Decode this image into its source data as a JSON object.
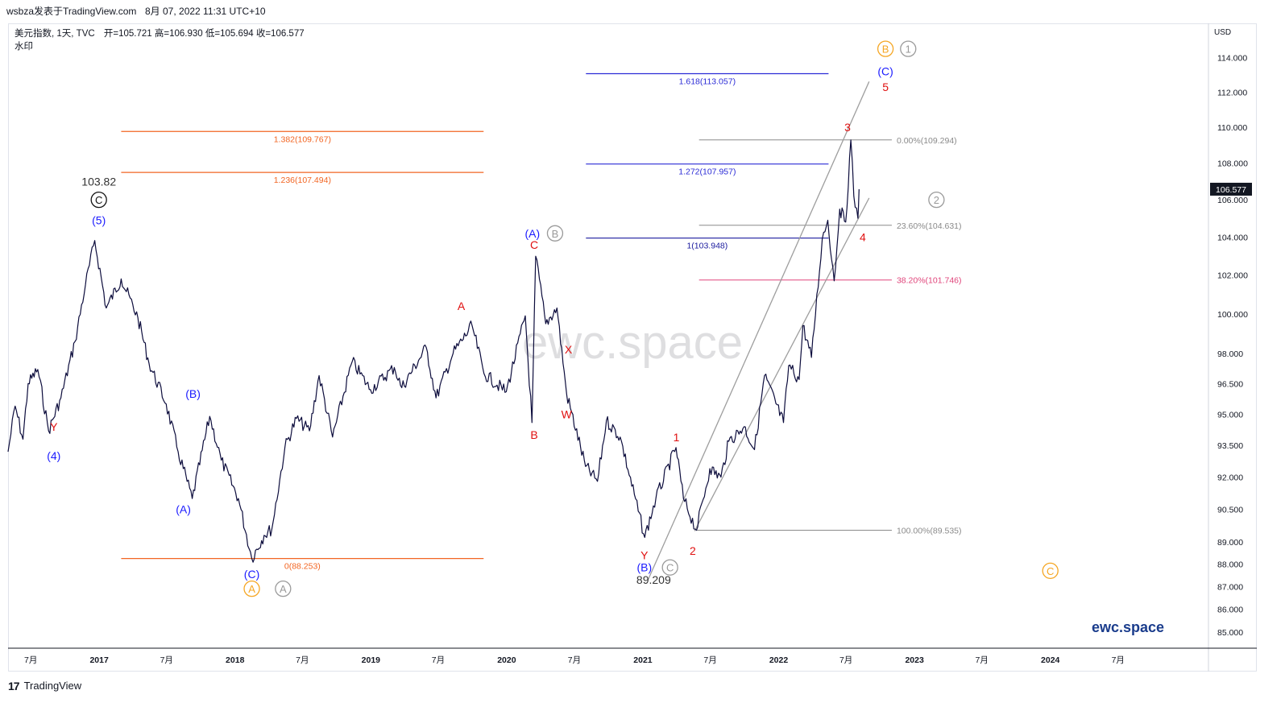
{
  "header": {
    "publisher": "wsbza发表于TradingView.com",
    "timestamp": "8月 07, 2022 11:31 UTC+10"
  },
  "legend": {
    "symbol": "美元指数, 1天, TVC",
    "ohlc": "开=105.721  高=106.930  低=105.694  收=106.577",
    "watermark_label": "水印"
  },
  "footer": {
    "logo_text": "TradingView"
  },
  "chart_data": {
    "type": "line",
    "currency": "USD",
    "last_price": "106.577",
    "ylim": [
      84.3,
      116.0
    ],
    "y_scale": "log",
    "xlim": [
      "2016-05-01",
      "2025-03-01"
    ],
    "grid": false,
    "watermark_text": "ewc.space",
    "brand_text": "ewc.space",
    "price_color": "#0c0c3c",
    "y_ticks": [
      {
        "v": 114,
        "label": "114.000"
      },
      {
        "v": 112,
        "label": "112.000"
      },
      {
        "v": 110,
        "label": "110.000"
      },
      {
        "v": 108,
        "label": "108.000"
      },
      {
        "v": 106,
        "label": "106.000"
      },
      {
        "v": 104,
        "label": "104.000"
      },
      {
        "v": 102,
        "label": "102.000"
      },
      {
        "v": 100,
        "label": "100.000"
      },
      {
        "v": 98,
        "label": "98.000"
      },
      {
        "v": 96.5,
        "label": "96.500"
      },
      {
        "v": 95,
        "label": "95.000"
      },
      {
        "v": 93.5,
        "label": "93.500"
      },
      {
        "v": 92,
        "label": "92.000"
      },
      {
        "v": 90.5,
        "label": "90.500"
      },
      {
        "v": 89,
        "label": "89.000"
      },
      {
        "v": 88,
        "label": "88.000"
      },
      {
        "v": 87,
        "label": "87.000"
      },
      {
        "v": 86,
        "label": "86.000"
      },
      {
        "v": 85,
        "label": "85.000"
      }
    ],
    "x_ticks": [
      {
        "d": "2016-07-01",
        "label": "7月",
        "bold": false
      },
      {
        "d": "2017-01-01",
        "label": "2017",
        "bold": true
      },
      {
        "d": "2017-07-01",
        "label": "7月",
        "bold": false
      },
      {
        "d": "2018-01-01",
        "label": "2018",
        "bold": true
      },
      {
        "d": "2018-07-01",
        "label": "7月",
        "bold": false
      },
      {
        "d": "2019-01-01",
        "label": "2019",
        "bold": true
      },
      {
        "d": "2019-07-01",
        "label": "7月",
        "bold": false
      },
      {
        "d": "2020-01-01",
        "label": "2020",
        "bold": true
      },
      {
        "d": "2020-07-01",
        "label": "7月",
        "bold": false
      },
      {
        "d": "2021-01-01",
        "label": "2021",
        "bold": true
      },
      {
        "d": "2021-07-01",
        "label": "7月",
        "bold": false
      },
      {
        "d": "2022-01-01",
        "label": "2022",
        "bold": true
      },
      {
        "d": "2022-07-01",
        "label": "7月",
        "bold": false
      },
      {
        "d": "2023-01-01",
        "label": "2023",
        "bold": true
      },
      {
        "d": "2023-07-01",
        "label": "7月",
        "bold": false
      },
      {
        "d": "2024-01-01",
        "label": "2024",
        "bold": true
      },
      {
        "d": "2024-07-01",
        "label": "7月",
        "bold": false
      }
    ],
    "price_path": [
      [
        "2016-05-01",
        93.2
      ],
      [
        "2016-05-20",
        95.4
      ],
      [
        "2016-06-10",
        93.8
      ],
      [
        "2016-06-24",
        96.5
      ],
      [
        "2016-07-20",
        97.2
      ],
      [
        "2016-08-18",
        94.2
      ],
      [
        "2016-09-20",
        95.8
      ],
      [
        "2016-10-28",
        98.6
      ],
      [
        "2016-11-25",
        101.5
      ],
      [
        "2016-12-20",
        103.82
      ],
      [
        "2017-01-20",
        100.3
      ],
      [
        "2017-03-01",
        101.8
      ],
      [
        "2017-04-15",
        99.8
      ],
      [
        "2017-05-15",
        97.5
      ],
      [
        "2017-06-30",
        95.5
      ],
      [
        "2017-08-01",
        93.2
      ],
      [
        "2017-09-08",
        91.0
      ],
      [
        "2017-10-25",
        94.9
      ],
      [
        "2017-11-25",
        92.8
      ],
      [
        "2018-01-10",
        91.0
      ],
      [
        "2018-02-15",
        88.253
      ],
      [
        "2018-03-20",
        89.3
      ],
      [
        "2018-04-10",
        89.6
      ],
      [
        "2018-05-15",
        93.4
      ],
      [
        "2018-06-15",
        94.8
      ],
      [
        "2018-07-20",
        94.2
      ],
      [
        "2018-08-15",
        96.9
      ],
      [
        "2018-09-20",
        93.9
      ],
      [
        "2018-11-12",
        97.6
      ],
      [
        "2018-12-31",
        96.2
      ],
      [
        "2019-03-05",
        97.3
      ],
      [
        "2019-03-25",
        96.3
      ],
      [
        "2019-05-30",
        98.3
      ],
      [
        "2019-06-25",
        95.8
      ],
      [
        "2019-08-10",
        98.0
      ],
      [
        "2019-09-30",
        99.4
      ],
      [
        "2019-11-01",
        97.0
      ],
      [
        "2019-12-31",
        96.1
      ],
      [
        "2020-02-20",
        99.9
      ],
      [
        "2020-03-09",
        94.6
      ],
      [
        "2020-03-19",
        102.99
      ],
      [
        "2020-04-15",
        99.5
      ],
      [
        "2020-05-15",
        100.3
      ],
      [
        "2020-06-10",
        96.0
      ],
      [
        "2020-07-31",
        92.5
      ],
      [
        "2020-09-01",
        91.8
      ],
      [
        "2020-09-25",
        94.7
      ],
      [
        "2020-11-01",
        93.9
      ],
      [
        "2021-01-06",
        89.209
      ],
      [
        "2021-02-05",
        91.0
      ],
      [
        "2021-03-31",
        93.4
      ],
      [
        "2021-04-20",
        91.0
      ],
      [
        "2021-05-25",
        89.535
      ],
      [
        "2021-06-30",
        92.4
      ],
      [
        "2021-07-30",
        92.0
      ],
      [
        "2021-08-20",
        93.7
      ],
      [
        "2021-09-30",
        94.4
      ],
      [
        "2021-10-28",
        93.3
      ],
      [
        "2021-11-24",
        96.9
      ],
      [
        "2022-01-14",
        94.6
      ],
      [
        "2022-01-28",
        97.4
      ],
      [
        "2022-02-25",
        96.7
      ],
      [
        "2022-03-07",
        99.4
      ],
      [
        "2022-03-30",
        97.8
      ],
      [
        "2022-04-28",
        103.9
      ],
      [
        "2022-05-13",
        104.9
      ],
      [
        "2022-05-30",
        101.7
      ],
      [
        "2022-06-14",
        105.5
      ],
      [
        "2022-06-30",
        104.8
      ],
      [
        "2022-07-14",
        109.294
      ],
      [
        "2022-07-22",
        106.2
      ],
      [
        "2022-08-02",
        105.0
      ],
      [
        "2022-08-05",
        106.577
      ]
    ],
    "fib_levels": [
      {
        "d1": "2017-03-01",
        "d2": "2019-10-31",
        "v": 109.767,
        "label": "1.382(109.767)",
        "color": "#f26522"
      },
      {
        "d1": "2017-03-01",
        "d2": "2019-10-31",
        "v": 107.494,
        "label": "1.236(107.494)",
        "color": "#f26522"
      },
      {
        "d1": "2017-03-01",
        "d2": "2019-10-31",
        "v": 88.253,
        "label": "0(88.253)",
        "color": "#f26522"
      },
      {
        "d1": "2020-08-01",
        "d2": "2022-05-15",
        "v": 113.057,
        "label": "1.618(113.057)",
        "color": "#2b2bd6"
      },
      {
        "d1": "2020-08-01",
        "d2": "2022-05-15",
        "v": 107.957,
        "label": "1.272(107.957)",
        "color": "#2b2bd6"
      },
      {
        "d1": "2020-08-01",
        "d2": "2022-05-15",
        "v": 103.948,
        "label": "1(103.948)",
        "color": "#1a1a9e"
      }
    ],
    "retracements": [
      {
        "d1": "2021-06-01",
        "d2": "2022-11-01",
        "v": 109.294,
        "label": "0.00%(109.294)",
        "color": "#8a8a8a"
      },
      {
        "d1": "2021-06-01",
        "d2": "2022-11-01",
        "v": 104.631,
        "label": "23.60%(104.631)",
        "color": "#8a8a8a"
      },
      {
        "d1": "2021-06-01",
        "d2": "2022-11-01",
        "v": 101.746,
        "label": "38.20%(101.746)",
        "color": "#e0457b"
      },
      {
        "d1": "2021-05-25",
        "d2": "2022-11-01",
        "v": 89.535,
        "label": "100.00%(89.535)",
        "color": "#8a8a8a"
      }
    ],
    "channel_lines": [
      {
        "p1": [
          "2021-01-15",
          87.3
        ],
        "p2": [
          "2022-09-01",
          112.6
        ]
      },
      {
        "p1": [
          "2021-05-20",
          89.5
        ],
        "p2": [
          "2022-09-01",
          106.1
        ]
      }
    ],
    "wave_labels": [
      {
        "d": "2016-09-01",
        "v": 94.4,
        "text": "Y",
        "color": "#e01010",
        "circle": null
      },
      {
        "d": "2016-09-01",
        "v": 93.0,
        "text": "(4)",
        "color": "#1a1aff",
        "circle": null
      },
      {
        "d": "2016-12-31",
        "v": 104.9,
        "text": "(5)",
        "color": "#1a1aff",
        "circle": null
      },
      {
        "d": "2016-12-31",
        "v": 107.0,
        "text": "103.82",
        "color": "#333333",
        "circle": null
      },
      {
        "d": "2016-12-31",
        "v": 106.0,
        "text": "C",
        "color": "#111111",
        "circle": "#111111"
      },
      {
        "d": "2017-09-10",
        "v": 96.0,
        "text": "(B)",
        "color": "#1a1aff",
        "circle": null
      },
      {
        "d": "2017-08-15",
        "v": 90.5,
        "text": "(A)",
        "color": "#1a1aff",
        "circle": null
      },
      {
        "d": "2018-02-15",
        "v": 87.55,
        "text": "(C)",
        "color": "#1a1aff",
        "circle": null
      },
      {
        "d": "2018-02-15",
        "v": 86.9,
        "text": "A",
        "color": "#f5a623",
        "circle": "#f5a623"
      },
      {
        "d": "2018-05-10",
        "v": 86.9,
        "text": "A",
        "color": "#9a9a9a",
        "circle": "#9a9a9a"
      },
      {
        "d": "2019-09-01",
        "v": 100.4,
        "text": "A",
        "color": "#e01010",
        "circle": null
      },
      {
        "d": "2020-03-15",
        "v": 94.0,
        "text": "B",
        "color": "#e01010",
        "circle": null
      },
      {
        "d": "2020-03-15",
        "v": 103.6,
        "text": "C",
        "color": "#e01010",
        "circle": null
      },
      {
        "d": "2020-03-10",
        "v": 104.2,
        "text": "(A)",
        "color": "#1a1aff",
        "circle": null
      },
      {
        "d": "2020-05-10",
        "v": 104.2,
        "text": "B",
        "color": "#9a9a9a",
        "circle": "#9a9a9a"
      },
      {
        "d": "2020-06-15",
        "v": 98.2,
        "text": "X",
        "color": "#e01010",
        "circle": null
      },
      {
        "d": "2020-06-10",
        "v": 95.0,
        "text": "W",
        "color": "#e01010",
        "circle": null
      },
      {
        "d": "2021-01-05",
        "v": 88.4,
        "text": "Y",
        "color": "#e01010",
        "circle": null
      },
      {
        "d": "2021-01-05",
        "v": 87.85,
        "text": "(B)",
        "color": "#1a1aff",
        "circle": null
      },
      {
        "d": "2021-03-15",
        "v": 87.85,
        "text": "C",
        "color": "#9a9a9a",
        "circle": "#9a9a9a"
      },
      {
        "d": "2021-01-30",
        "v": 87.3,
        "text": "89.209",
        "color": "#333333",
        "circle": null
      },
      {
        "d": "2021-04-01",
        "v": 93.9,
        "text": "1",
        "color": "#e01010",
        "circle": null
      },
      {
        "d": "2021-05-15",
        "v": 88.6,
        "text": "2",
        "color": "#e01010",
        "circle": null
      },
      {
        "d": "2022-07-05",
        "v": 110.0,
        "text": "3",
        "color": "#e01010",
        "circle": null
      },
      {
        "d": "2022-08-15",
        "v": 104.0,
        "text": "4",
        "color": "#e01010",
        "circle": null
      },
      {
        "d": "2022-10-15",
        "v": 112.3,
        "text": "5",
        "color": "#e01010",
        "circle": null
      },
      {
        "d": "2022-10-15",
        "v": 113.2,
        "text": "(C)",
        "color": "#1a1aff",
        "circle": null
      },
      {
        "d": "2022-10-15",
        "v": 114.5,
        "text": "B",
        "color": "#f5a623",
        "circle": "#f5a623"
      },
      {
        "d": "2022-12-15",
        "v": 114.5,
        "text": "1",
        "color": "#9a9a9a",
        "circle": "#9a9a9a"
      },
      {
        "d": "2023-03-01",
        "v": 106.0,
        "text": "2",
        "color": "#9a9a9a",
        "circle": "#9a9a9a"
      },
      {
        "d": "2024-01-01",
        "v": 87.7,
        "text": "C",
        "color": "#f5a623",
        "circle": "#f5a623"
      }
    ]
  }
}
